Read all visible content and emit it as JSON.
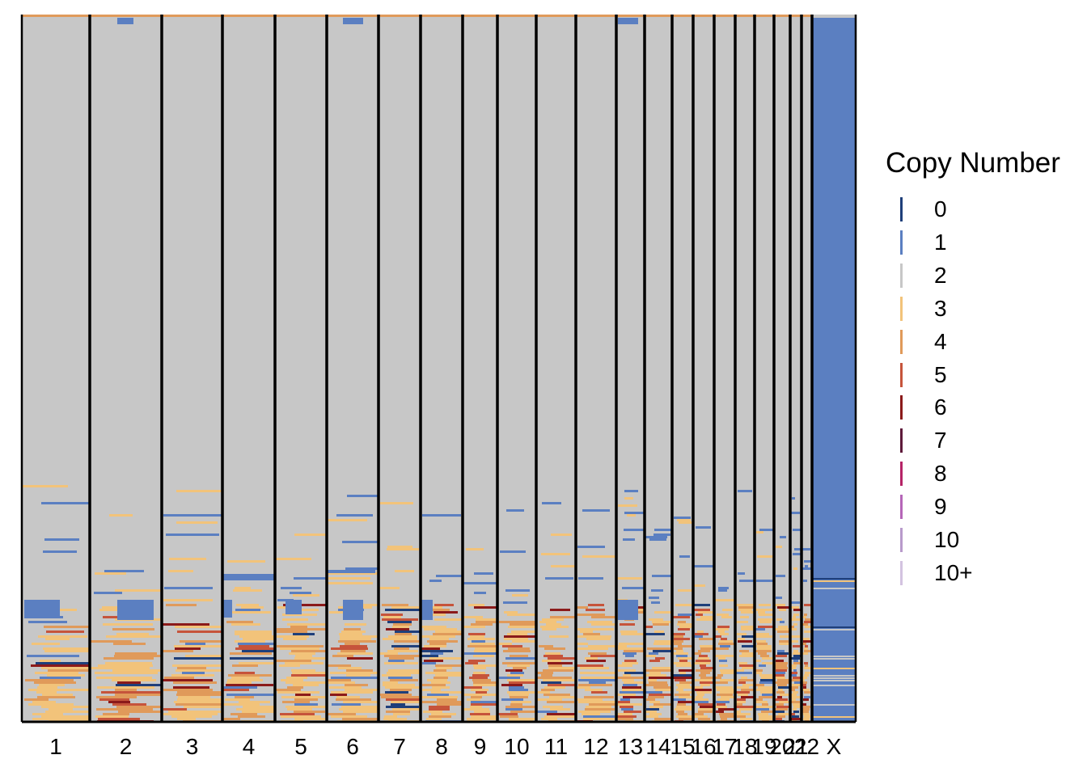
{
  "chart_data": {
    "type": "heatmap",
    "title": "",
    "xlabel": "",
    "ylabel": "",
    "x_categories": [
      "1",
      "2",
      "3",
      "4",
      "5",
      "6",
      "7",
      "8",
      "9",
      "10",
      "11",
      "12",
      "13",
      "14",
      "15",
      "16",
      "17",
      "18",
      "19",
      "20",
      "21",
      "22",
      "X"
    ],
    "legend": {
      "title": "Copy Number",
      "placement": "right",
      "levels": [
        {
          "label": "0",
          "color": "#1f3f7a"
        },
        {
          "label": "1",
          "color": "#5b7fc1"
        },
        {
          "label": "2",
          "color": "#c7c7c7"
        },
        {
          "label": "3",
          "color": "#f2c37a"
        },
        {
          "label": "4",
          "color": "#e09a5a"
        },
        {
          "label": "5",
          "color": "#c6543b"
        },
        {
          "label": "6",
          "color": "#8b1a1a"
        },
        {
          "label": "7",
          "color": "#5e1a3a"
        },
        {
          "label": "8",
          "color": "#b52467"
        },
        {
          "label": "9",
          "color": "#b566b8"
        },
        {
          "label": "10",
          "color": "#b89acb"
        },
        {
          "label": "10+",
          "color": "#d3c3e0"
        }
      ]
    },
    "rows_description": "cells (rows) sorted top to bottom; upper ~70% of cells copy number 2 across autosomes; lower rows show gains (3-6) and losses (1); chromosome X predominantly copy number 1",
    "dominant_state_by_chromosome": {
      "1": 2,
      "2": 2,
      "3": 2,
      "4": 2,
      "5": 2,
      "6": 2,
      "7": 2,
      "8": 2,
      "9": 2,
      "10": 2,
      "11": 2,
      "12": 2,
      "13": 2,
      "14": 2,
      "15": 2,
      "16": 2,
      "17": 2,
      "18": 2,
      "19": 2,
      "20": 2,
      "21": 2,
      "22": 2,
      "X": 1
    },
    "grid": false
  }
}
